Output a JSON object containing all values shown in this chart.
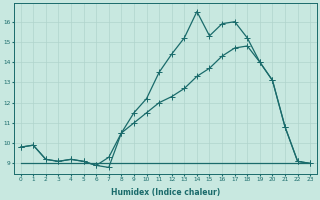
{
  "xlabel": "Humidex (Indice chaleur)",
  "ylabel": "",
  "bg_color": "#c8e8e0",
  "line_color": "#1a6b6b",
  "grid_color": "#b0d4cc",
  "xlim": [
    -0.5,
    23.5
  ],
  "ylim": [
    8.5,
    16.9
  ],
  "yticks": [
    9,
    10,
    11,
    12,
    13,
    14,
    15,
    16
  ],
  "xticks": [
    0,
    1,
    2,
    3,
    4,
    5,
    6,
    7,
    8,
    9,
    10,
    11,
    12,
    13,
    14,
    15,
    16,
    17,
    18,
    19,
    20,
    21,
    22,
    23
  ],
  "line_flat": {
    "x": [
      0,
      6,
      10,
      20,
      23
    ],
    "y": [
      9.0,
      9.0,
      9.0,
      9.0,
      9.0
    ]
  },
  "line_linear": {
    "x": [
      0,
      1,
      2,
      3,
      4,
      5,
      6,
      7,
      8,
      9,
      10,
      11,
      12,
      13,
      14,
      15,
      16,
      17,
      18,
      19,
      20,
      21,
      22,
      23
    ],
    "y": [
      9.8,
      9.9,
      9.2,
      9.1,
      9.2,
      9.1,
      8.9,
      9.3,
      10.5,
      11.0,
      11.5,
      12.0,
      12.3,
      12.7,
      13.3,
      13.7,
      14.3,
      14.7,
      14.8,
      14.0,
      13.1,
      10.8,
      9.1,
      9.0
    ]
  },
  "line_curved": {
    "x": [
      0,
      1,
      2,
      3,
      4,
      5,
      6,
      7,
      8,
      9,
      10,
      11,
      12,
      13,
      14,
      15,
      16,
      17,
      18,
      19,
      20,
      21,
      22,
      23
    ],
    "y": [
      9.8,
      9.9,
      9.2,
      9.1,
      9.2,
      9.1,
      8.9,
      8.8,
      10.5,
      11.5,
      12.2,
      13.5,
      14.4,
      15.2,
      16.5,
      15.3,
      15.9,
      16.0,
      15.2,
      14.0,
      13.1,
      10.8,
      9.1,
      9.0
    ]
  }
}
